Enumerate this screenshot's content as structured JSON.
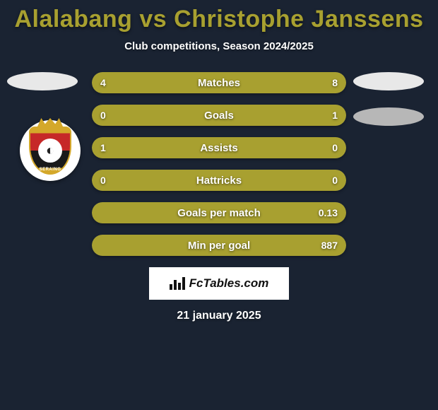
{
  "title": {
    "text": "Alalabang vs Christophe Janssens",
    "color": "#a8a030",
    "fontsize": 34,
    "fontweight": 900
  },
  "subtitle": {
    "text": "Club competitions, Season 2024/2025",
    "fontsize": 15
  },
  "background_color": "#1a2332",
  "player_left": {
    "pill_color": "#e8e8e8",
    "crest": {
      "name": "SERAING",
      "primary": "#c62828",
      "secondary": "#1a1a1a",
      "accent": "#d4a82a",
      "glyph": "◐"
    }
  },
  "player_right": {
    "pill_colors": [
      "#e8e8e8",
      "#b7b7b7"
    ]
  },
  "stats": {
    "bar_track_color": "#3a4252",
    "left_fill_color": "#a8a030",
    "right_fill_color": "#a8a030",
    "height": 30,
    "gap": 16,
    "rows": [
      {
        "label": "Matches",
        "left": "4",
        "right": "8",
        "left_pct": 33,
        "right_pct": 67
      },
      {
        "label": "Goals",
        "left": "0",
        "right": "1",
        "left_pct": 18,
        "right_pct": 82
      },
      {
        "label": "Assists",
        "left": "1",
        "right": "0",
        "left_pct": 82,
        "right_pct": 18
      },
      {
        "label": "Hattricks",
        "left": "0",
        "right": "0",
        "left_pct": 50,
        "right_pct": 50
      },
      {
        "label": "Goals per match",
        "left": "",
        "right": "0.13",
        "left_pct": 50,
        "right_pct": 50
      },
      {
        "label": "Min per goal",
        "left": "",
        "right": "887",
        "left_pct": 50,
        "right_pct": 50
      }
    ]
  },
  "watermark": {
    "text": "FcTables.com",
    "bg": "#ffffff",
    "color": "#111111"
  },
  "date": {
    "text": "21 january 2025",
    "fontsize": 16
  }
}
